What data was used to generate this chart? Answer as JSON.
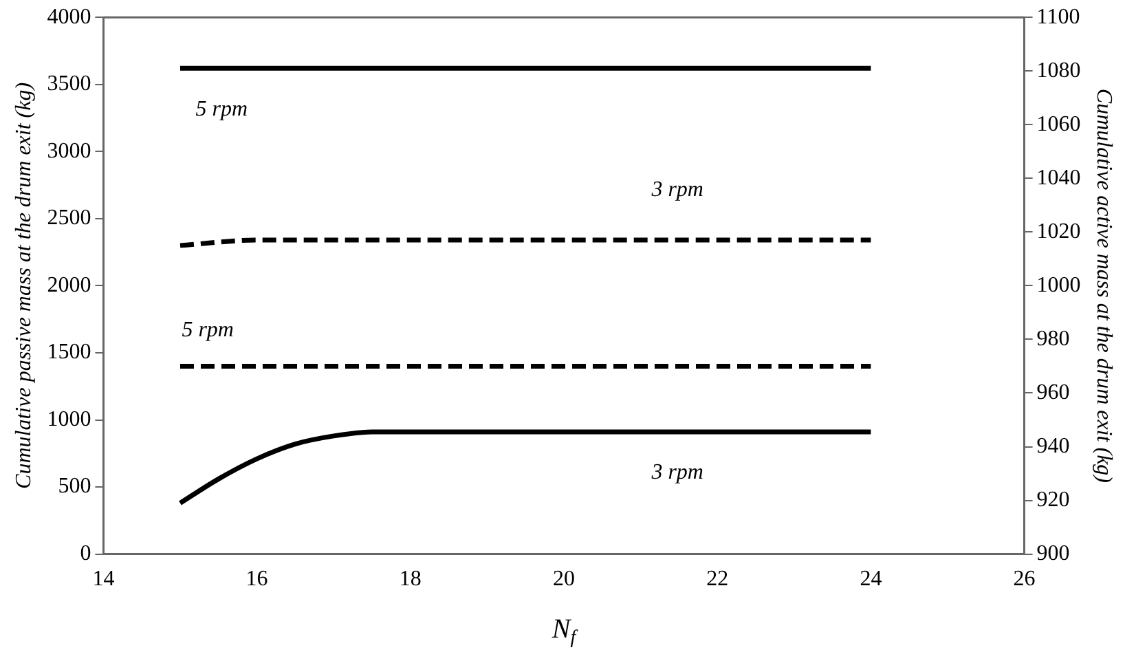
{
  "chart_data": {
    "type": "line",
    "xlabel": "N$_{f}$",
    "ylabel": "Cumulative passive mass at the drum exit (kg)",
    "y2label": "Cumulative active mass at the drum exit (kg)",
    "xlim": [
      14,
      26
    ],
    "xticks": [
      14,
      16,
      18,
      20,
      22,
      24,
      26
    ],
    "ylim": [
      0,
      4000
    ],
    "yticks": [
      0,
      500,
      1000,
      1500,
      2000,
      2500,
      3000,
      3500,
      4000
    ],
    "y2lim": [
      900,
      1100
    ],
    "y2ticks": [
      900,
      920,
      940,
      960,
      980,
      1000,
      1020,
      1040,
      1060,
      1080,
      1100
    ],
    "grid": false,
    "legend": false,
    "marker": "none",
    "series": [
      {
        "name": "5 rpm",
        "color": "#000000",
        "line_style": "solid",
        "x": [
          15,
          24
        ],
        "values": [
          3620,
          3620
        ]
      },
      {
        "name": "3 rpm",
        "color": "#000000",
        "line_style": "dashed",
        "axis": "y2",
        "x": [
          15,
          16,
          24
        ],
        "values": [
          1015,
          1017,
          1017
        ]
      },
      {
        "name": "5 rpm",
        "color": "#000000",
        "line_style": "dashed",
        "axis": "y2",
        "x": [
          15,
          24
        ],
        "values": [
          970,
          970
        ]
      },
      {
        "name": "3 rpm",
        "color": "#000000",
        "line_style": "solid",
        "x": [
          15,
          15.5,
          16,
          16.5,
          17,
          17.5,
          18,
          19,
          20,
          22,
          24
        ],
        "values": [
          380,
          560,
          710,
          820,
          880,
          910,
          910,
          910,
          910,
          910,
          910
        ]
      }
    ]
  }
}
